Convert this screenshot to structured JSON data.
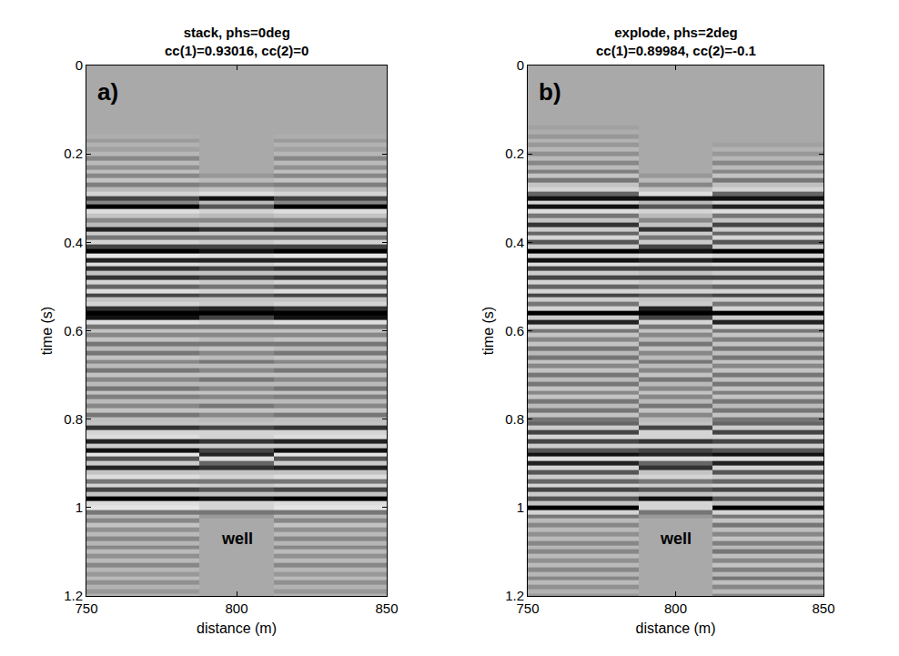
{
  "chart_data": [
    {
      "type": "heatmap",
      "title": "stack, phs=0deg",
      "subtitle": "cc(1)=0.93016, cc(2)=0",
      "panel_label": "a)",
      "x_label": "distance (m)",
      "y_label": "time (s)",
      "xlim": [
        750,
        850
      ],
      "xticks": [
        750,
        800,
        850
      ],
      "ylim": [
        0,
        1.2
      ],
      "yticks": [
        0,
        0.2,
        0.4,
        0.6,
        0.8,
        1,
        1.2
      ],
      "zlim": [
        -1,
        1
      ],
      "annotations": [
        {
          "text": "well",
          "x": 800,
          "y": 1.07
        }
      ],
      "x_edges": [
        750,
        787.5,
        812.5,
        850
      ],
      "time": [
        0,
        0.01,
        0.02,
        0.03,
        0.04,
        0.05,
        0.06,
        0.07,
        0.08,
        0.09,
        0.1,
        0.11,
        0.12,
        0.13,
        0.14,
        0.15,
        0.16,
        0.17,
        0.18,
        0.19,
        0.2,
        0.21,
        0.22,
        0.23,
        0.24,
        0.25,
        0.26,
        0.27,
        0.28,
        0.29,
        0.3,
        0.31,
        0.32,
        0.33,
        0.34,
        0.35,
        0.36,
        0.37,
        0.38,
        0.39,
        0.4,
        0.41,
        0.42,
        0.43,
        0.44,
        0.45,
        0.46,
        0.47,
        0.48,
        0.49,
        0.5,
        0.51,
        0.52,
        0.53,
        0.54,
        0.55,
        0.56,
        0.57,
        0.58,
        0.59,
        0.6,
        0.61,
        0.62,
        0.63,
        0.64,
        0.65,
        0.66,
        0.67,
        0.68,
        0.69,
        0.7,
        0.71,
        0.72,
        0.73,
        0.74,
        0.75,
        0.76,
        0.77,
        0.78,
        0.79,
        0.8,
        0.81,
        0.82,
        0.83,
        0.84,
        0.85,
        0.86,
        0.87,
        0.88,
        0.89,
        0.9,
        0.91,
        0.92,
        0.93,
        0.94,
        0.95,
        0.96,
        0.97,
        0.98,
        0.99,
        1,
        1.01,
        1.02,
        1.03,
        1.04,
        1.05,
        1.06,
        1.07,
        1.08,
        1.09,
        1.1,
        1.11,
        1.12,
        1.13,
        1.14,
        1.15,
        1.16,
        1.17,
        1.18,
        1.19,
        1.2
      ],
      "cells": [
        [
          0,
          0,
          0,
          0,
          0,
          0,
          0,
          0,
          0,
          0,
          0,
          0,
          0,
          0,
          0,
          0,
          -0.05,
          0.08,
          -0.1,
          0.05,
          -0.15,
          0.2,
          -0.2,
          0.15,
          -0.25,
          0.2,
          -0.3,
          0.25,
          -0.2,
          -0.5,
          0.6,
          0.2,
          1.0,
          -0.6,
          -0.3,
          0.2,
          -0.2,
          0.8,
          -0.4,
          0.3,
          -0.5,
          0.6,
          1.0,
          -0.7,
          0.8,
          -0.6,
          0.7,
          -0.3,
          0.7,
          -0.5,
          0.4,
          -0.6,
          0.6,
          -0.3,
          -0.5,
          0.7,
          1.0,
          0.9,
          -0.6,
          0.3,
          -0.3,
          0.2,
          -0.3,
          0.3,
          -0.2,
          0.3,
          -0.3,
          0.2,
          -0.2,
          0.3,
          -0.3,
          0.2,
          -0.2,
          0.3,
          -0.3,
          0.25,
          -0.2,
          0.2,
          -0.3,
          0.3,
          -0.25,
          -0.3,
          0.7,
          -0.5,
          -0.6,
          0.8,
          -0.4,
          0.9,
          -0.7,
          0.5,
          -0.4,
          0.8,
          -0.3,
          -0.6,
          0.3,
          -0.5,
          0.6,
          -0.3,
          1.0,
          -0.6,
          -0.7,
          0.3,
          -0.2,
          0.2,
          -0.3,
          0.15,
          -0.2,
          0.2,
          -0.15,
          0.2,
          -0.2,
          0.15,
          -0.2,
          0.2,
          -0.15,
          0.1,
          -0.2,
          0.15,
          -0.1,
          0.1,
          -0.1
        ],
        [
          0,
          0,
          0,
          0,
          0,
          0,
          0,
          0,
          0,
          0,
          0,
          0,
          0,
          0,
          0,
          0,
          0,
          0,
          0,
          0,
          0,
          0,
          0,
          0,
          0,
          0.1,
          -0.2,
          0.2,
          -0.3,
          -0.6,
          0.9,
          -0.2,
          0.5,
          -0.5,
          -0.2,
          0.2,
          -0.3,
          0.7,
          -0.4,
          0.3,
          -0.4,
          0.6,
          0.9,
          -0.6,
          0.8,
          -0.5,
          0.6,
          -0.3,
          0.6,
          -0.4,
          0.3,
          -0.5,
          0.5,
          -0.3,
          -0.4,
          0.8,
          1.0,
          0.6,
          -0.5,
          0.3,
          -0.3,
          0.2,
          -0.2,
          0.3,
          -0.3,
          0.2,
          -0.2,
          0.3,
          -0.2,
          0.2,
          -0.3,
          0.3,
          -0.2,
          0.2,
          -0.3,
          0.2,
          -0.2,
          0.3,
          -0.3,
          0.2,
          -0.2,
          -0.3,
          0.6,
          -0.5,
          -0.5,
          0.7,
          -0.4,
          0.6,
          0.8,
          -0.6,
          0.4,
          0.7,
          -0.3,
          -0.5,
          0.3,
          -0.4,
          0.5,
          -0.3,
          0.9,
          -0.5,
          -0.5,
          0.3,
          0.1,
          0,
          0,
          0,
          0,
          0,
          0,
          0,
          0,
          0,
          0,
          0,
          0,
          0,
          0,
          0,
          0,
          0,
          0
        ],
        [
          0,
          0,
          0,
          0,
          0,
          0,
          0,
          0,
          0,
          0,
          0,
          0,
          0,
          0,
          0,
          0,
          -0.05,
          0.08,
          -0.1,
          0.05,
          -0.15,
          0.2,
          -0.2,
          0.15,
          -0.25,
          0.2,
          -0.3,
          0.25,
          -0.2,
          -0.5,
          0.6,
          0.2,
          1.0,
          -0.6,
          -0.3,
          0.2,
          -0.2,
          0.8,
          -0.4,
          0.3,
          -0.5,
          0.6,
          1.0,
          -0.7,
          0.8,
          -0.6,
          0.7,
          -0.3,
          0.7,
          -0.5,
          0.4,
          -0.6,
          0.6,
          -0.3,
          -0.5,
          0.7,
          1.0,
          0.9,
          -0.6,
          0.3,
          -0.3,
          0.2,
          -0.3,
          0.3,
          -0.2,
          0.3,
          -0.3,
          0.2,
          -0.2,
          0.3,
          -0.3,
          0.2,
          -0.2,
          0.3,
          -0.3,
          0.25,
          -0.2,
          0.2,
          -0.3,
          0.3,
          -0.25,
          -0.3,
          0.7,
          -0.5,
          -0.6,
          0.8,
          -0.4,
          0.9,
          -0.7,
          0.5,
          -0.4,
          0.8,
          -0.3,
          -0.6,
          0.3,
          -0.5,
          0.6,
          -0.3,
          1.0,
          -0.6,
          -0.7,
          0.3,
          -0.2,
          0.2,
          -0.3,
          0.15,
          -0.2,
          0.2,
          -0.15,
          0.2,
          -0.2,
          0.15,
          -0.2,
          0.2,
          -0.15,
          0.1,
          -0.2,
          0.15,
          -0.1,
          0.1,
          -0.1
        ]
      ]
    },
    {
      "type": "heatmap",
      "title": "explode, phs=2deg",
      "subtitle": "cc(1)=0.89984, cc(2)=-0.1",
      "panel_label": "b)",
      "x_label": "distance (m)",
      "y_label": "time (s)",
      "xlim": [
        750,
        850
      ],
      "xticks": [
        750,
        800,
        850
      ],
      "ylim": [
        0,
        1.2
      ],
      "yticks": [
        0,
        0.2,
        0.4,
        0.6,
        0.8,
        1,
        1.2
      ],
      "zlim": [
        -1,
        1
      ],
      "annotations": [
        {
          "text": "well",
          "x": 800,
          "y": 1.07
        }
      ],
      "x_edges": [
        750,
        787.5,
        812.5,
        850
      ],
      "time": [
        0,
        0.01,
        0.02,
        0.03,
        0.04,
        0.05,
        0.06,
        0.07,
        0.08,
        0.09,
        0.1,
        0.11,
        0.12,
        0.13,
        0.14,
        0.15,
        0.16,
        0.17,
        0.18,
        0.19,
        0.2,
        0.21,
        0.22,
        0.23,
        0.24,
        0.25,
        0.26,
        0.27,
        0.28,
        0.29,
        0.3,
        0.31,
        0.32,
        0.33,
        0.34,
        0.35,
        0.36,
        0.37,
        0.38,
        0.39,
        0.4,
        0.41,
        0.42,
        0.43,
        0.44,
        0.45,
        0.46,
        0.47,
        0.48,
        0.49,
        0.5,
        0.51,
        0.52,
        0.53,
        0.54,
        0.55,
        0.56,
        0.57,
        0.58,
        0.59,
        0.6,
        0.61,
        0.62,
        0.63,
        0.64,
        0.65,
        0.66,
        0.67,
        0.68,
        0.69,
        0.7,
        0.71,
        0.72,
        0.73,
        0.74,
        0.75,
        0.76,
        0.77,
        0.78,
        0.79,
        0.8,
        0.81,
        0.82,
        0.83,
        0.84,
        0.85,
        0.86,
        0.87,
        0.88,
        0.89,
        0.9,
        0.91,
        0.92,
        0.93,
        0.94,
        0.95,
        0.96,
        0.97,
        0.98,
        0.99,
        1,
        1.01,
        1.02,
        1.03,
        1.04,
        1.05,
        1.06,
        1.07,
        1.08,
        1.09,
        1.1,
        1.11,
        1.12,
        1.13,
        1.14,
        1.15,
        1.16,
        1.17,
        1.18,
        1.19,
        1.2
      ],
      "cells": [
        [
          0,
          0,
          0,
          0,
          0,
          0,
          0,
          0,
          0,
          0,
          0,
          0,
          0,
          0,
          0.05,
          -0.05,
          0.1,
          -0.1,
          0.1,
          -0.15,
          0.15,
          -0.2,
          0.2,
          -0.2,
          0.25,
          -0.3,
          0.3,
          -0.3,
          -0.5,
          0.4,
          0.9,
          -0.5,
          0.9,
          -0.6,
          0.3,
          -0.3,
          0.7,
          -0.4,
          0.4,
          -0.5,
          0.5,
          -0.4,
          1.0,
          -0.5,
          0.9,
          -0.6,
          0.6,
          -0.4,
          0.6,
          -0.5,
          0.4,
          -0.5,
          0.6,
          -0.4,
          0.3,
          -0.5,
          1.0,
          -0.4,
          0.8,
          -0.5,
          0.3,
          -0.3,
          0.2,
          -0.3,
          0.3,
          -0.2,
          0.3,
          -0.3,
          0.2,
          -0.3,
          0.3,
          -0.2,
          0.3,
          -0.3,
          0.2,
          -0.3,
          0.3,
          -0.2,
          0.3,
          -0.3,
          0.3,
          0.4,
          -0.4,
          0.6,
          -0.5,
          0.6,
          -0.4,
          0.5,
          0.9,
          -0.6,
          0.8,
          -0.5,
          0.5,
          -0.4,
          0.4,
          -0.5,
          0.6,
          -0.4,
          0.5,
          -0.3,
          1.0,
          -0.5,
          0.3,
          -0.2,
          0.2,
          -0.2,
          0.15,
          -0.2,
          0.2,
          -0.15,
          0.2,
          -0.2,
          0.15,
          -0.2,
          0.2,
          -0.15,
          0.2,
          -0.2,
          0.15,
          -0.1,
          0.1
        ],
        [
          0,
          0,
          0,
          0,
          0,
          0,
          0,
          0,
          0,
          0,
          0,
          0,
          0,
          0,
          0,
          0,
          0,
          0,
          0,
          0,
          0,
          0,
          0,
          0,
          0,
          0.1,
          -0.2,
          0.2,
          -0.3,
          -0.6,
          0.9,
          -0.2,
          0.5,
          -0.5,
          -0.2,
          0.2,
          -0.3,
          0.7,
          -0.4,
          0.3,
          -0.4,
          0.6,
          0.9,
          -0.6,
          0.8,
          -0.5,
          0.6,
          -0.3,
          0.6,
          -0.4,
          0.3,
          -0.5,
          0.5,
          -0.3,
          -0.4,
          0.8,
          1.0,
          0.6,
          -0.5,
          0.3,
          -0.3,
          0.2,
          -0.2,
          0.3,
          -0.3,
          0.2,
          -0.2,
          0.3,
          -0.2,
          0.2,
          -0.3,
          0.3,
          -0.2,
          0.2,
          -0.3,
          0.2,
          -0.2,
          0.3,
          -0.3,
          0.2,
          -0.2,
          -0.3,
          0.6,
          -0.5,
          -0.5,
          0.7,
          -0.4,
          0.6,
          0.8,
          -0.6,
          0.4,
          0.7,
          -0.3,
          -0.5,
          0.3,
          -0.4,
          0.5,
          -0.3,
          0.9,
          -0.5,
          -0.5,
          0.3,
          0.1,
          0,
          0,
          0,
          0,
          0,
          0,
          0,
          0,
          0,
          0,
          0,
          0,
          0,
          0,
          0,
          0,
          0,
          0
        ],
        [
          0,
          0,
          0,
          0,
          0,
          0,
          0,
          0,
          0,
          0,
          0,
          0,
          0,
          0,
          0,
          0,
          0,
          0,
          0.05,
          -0.1,
          0.1,
          -0.15,
          0.2,
          -0.2,
          0.2,
          -0.3,
          0.3,
          -0.25,
          -0.5,
          0.4,
          0.9,
          -0.5,
          0.8,
          -0.6,
          0.3,
          -0.3,
          0.6,
          -0.4,
          0.4,
          -0.5,
          0.5,
          -0.4,
          1.0,
          -0.5,
          0.9,
          -0.6,
          0.6,
          -0.4,
          0.6,
          -0.5,
          0.4,
          -0.5,
          0.6,
          -0.4,
          0.3,
          -0.5,
          1.0,
          -0.4,
          0.8,
          -0.5,
          0.3,
          -0.3,
          0.25,
          -0.3,
          0.3,
          -0.25,
          0.3,
          -0.3,
          0.2,
          -0.3,
          0.3,
          -0.25,
          0.3,
          -0.3,
          0.25,
          -0.3,
          0.3,
          -0.2,
          0.3,
          -0.3,
          0.3,
          0.4,
          -0.4,
          0.6,
          -0.5,
          0.6,
          -0.4,
          0.5,
          0.9,
          -0.6,
          0.8,
          -0.5,
          0.5,
          -0.4,
          0.4,
          -0.5,
          0.6,
          -0.4,
          0.5,
          -0.3,
          1.0,
          -0.5,
          0.3,
          -0.3,
          0.3,
          -0.25,
          0.2,
          -0.3,
          0.25,
          -0.2,
          0.3,
          -0.25,
          0.2,
          -0.3,
          0.25,
          -0.2,
          0.3,
          -0.25,
          0.2,
          -0.2,
          0.2
        ]
      ]
    }
  ]
}
